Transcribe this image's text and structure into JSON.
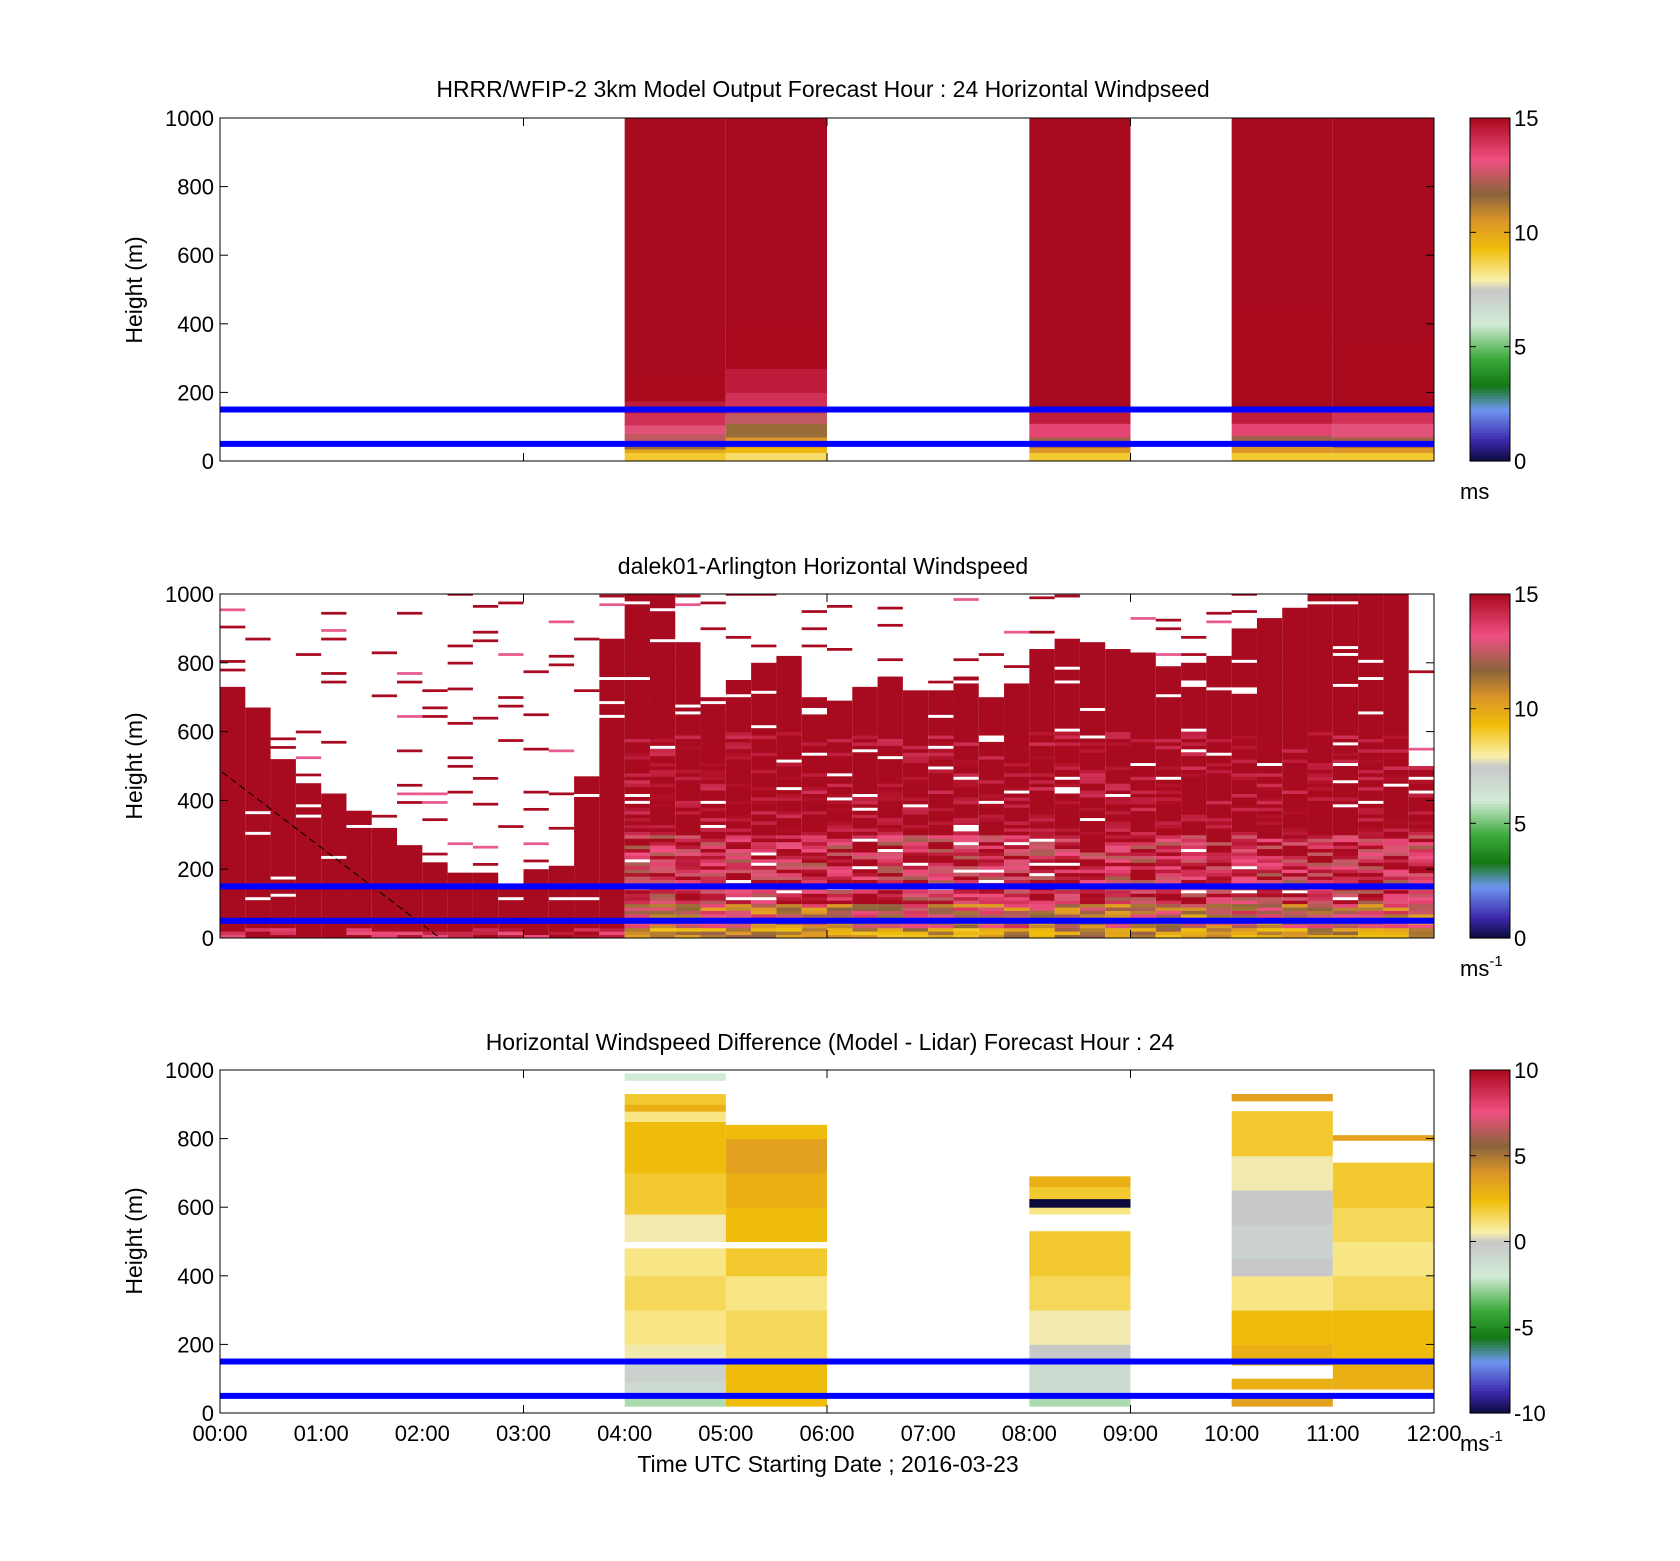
{
  "colors": {
    "reference_lines": "#0000ff",
    "axes": "#000000",
    "background": "#ffffff"
  },
  "xaxis": {
    "label": "Time UTC  Starting Date ; 2016-03-23",
    "ticks": [
      "00:00",
      "01:00",
      "02:00",
      "03:00",
      "04:00",
      "05:00",
      "06:00",
      "07:00",
      "08:00",
      "09:00",
      "10:00",
      "11:00",
      "12:00"
    ]
  },
  "chart_data": [
    {
      "type": "heatmap",
      "title": "HRRR/WFIP-2 3km Model Output   Forecast Hour : 24 Horizontal Windpseed",
      "ylabel": "Height (m)",
      "xlabel": "",
      "xlim_hours": [
        0,
        12
      ],
      "ylim": [
        0,
        1000
      ],
      "yticks": [
        "0",
        "200",
        "400",
        "600",
        "800",
        "1000"
      ],
      "colorbar": {
        "ticks": [
          "0",
          "5",
          "10",
          "15"
        ],
        "range": [
          0,
          15
        ],
        "unit": "ms",
        "unit_sup": ""
      },
      "reference_lines_m": [
        50,
        150
      ],
      "description_of_data": "model windspeed (m/s) per hourly column",
      "columns": [
        {
          "t0": 4,
          "t1": 5,
          "profile": [
            [
              0,
              25,
              9
            ],
            [
              25,
              35,
              10
            ],
            [
              35,
              55,
              11.5
            ],
            [
              55,
              80,
              12.5
            ],
            [
              80,
              105,
              13
            ],
            [
              105,
              140,
              14
            ],
            [
              140,
              175,
              14.5
            ],
            [
              175,
              250,
              15
            ],
            [
              250,
              1000,
              16
            ]
          ]
        },
        {
          "t0": 5,
          "t1": 6,
          "profile": [
            [
              0,
              25,
              8.5
            ],
            [
              25,
              40,
              9.5
            ],
            [
              40,
              70,
              10.5
            ],
            [
              70,
              110,
              11.5
            ],
            [
              110,
              140,
              12.5
            ],
            [
              140,
              200,
              14
            ],
            [
              200,
              270,
              14.5
            ],
            [
              270,
              340,
              15
            ],
            [
              340,
              400,
              15.5
            ],
            [
              400,
              1000,
              16
            ]
          ]
        },
        {
          "t0": 8,
          "t1": 9,
          "profile": [
            [
              0,
              25,
              9
            ],
            [
              25,
              40,
              10.5
            ],
            [
              40,
              70,
              12
            ],
            [
              70,
              110,
              13.5
            ],
            [
              110,
              150,
              14.5
            ],
            [
              150,
              1000,
              16
            ]
          ]
        },
        {
          "t0": 10,
          "t1": 11,
          "profile": [
            [
              0,
              25,
              9
            ],
            [
              25,
              45,
              10.5
            ],
            [
              45,
              75,
              12
            ],
            [
              75,
              110,
              13.5
            ],
            [
              110,
              150,
              14.5
            ],
            [
              150,
              450,
              15.5
            ],
            [
              450,
              1000,
              16
            ]
          ]
        },
        {
          "t0": 11,
          "t1": 12,
          "profile": [
            [
              0,
              25,
              9
            ],
            [
              25,
              40,
              10.5
            ],
            [
              40,
              70,
              12
            ],
            [
              70,
              110,
              13
            ],
            [
              110,
              150,
              14
            ],
            [
              150,
              350,
              15
            ],
            [
              350,
              1000,
              16
            ]
          ]
        }
      ]
    },
    {
      "type": "heatmap",
      "title": "dalek01-Arlington  Horizontal Windspeed",
      "ylabel": "Height (m)",
      "xlabel": "",
      "xlim_hours": [
        0,
        12
      ],
      "ylim": [
        0,
        1000
      ],
      "yticks": [
        "0",
        "200",
        "400",
        "600",
        "800",
        "1000"
      ],
      "colorbar": {
        "ticks": [
          "0",
          "5",
          "10",
          "15"
        ],
        "range": [
          0,
          15
        ],
        "unit": "ms",
        "unit_sup": "-1"
      },
      "reference_lines_m": [
        50,
        150
      ],
      "description_of_data": "lidar windspeed (m/s); columns of 0.25 h with top height of valid data",
      "col_width_h": 0.25,
      "tops_m": [
        730,
        670,
        530,
        450,
        420,
        370,
        330,
        270,
        220,
        200,
        190,
        150,
        200,
        220,
        470,
        870,
        1000,
        1000,
        870,
        700,
        750,
        800,
        820,
        700,
        690,
        730,
        760,
        720,
        720,
        760,
        700,
        740,
        840,
        870,
        860,
        840,
        830,
        800,
        800,
        820,
        900,
        930,
        960,
        1000,
        1000,
        1000,
        1000,
        500
      ]
    },
    {
      "type": "heatmap",
      "title": "Horizontal Windspeed Difference (Model - Lidar) Forecast Hour : 24",
      "ylabel": "Height (m)",
      "xlabel": "Time UTC  Starting Date ; 2016-03-23",
      "xlim_hours": [
        0,
        12
      ],
      "ylim": [
        0,
        1000
      ],
      "yticks": [
        "0",
        "200",
        "400",
        "600",
        "800",
        "1000"
      ],
      "colorbar": {
        "ticks": [
          "-10",
          "-5",
          "0",
          "5",
          "10"
        ],
        "range": [
          -10,
          10
        ],
        "unit": "ms",
        "unit_sup": "-1"
      },
      "reference_lines_m": [
        50,
        150
      ],
      "description_of_data": "difference (m/s) per hourly column; bands [bottom, top, value]",
      "columns": [
        {
          "t0": 4,
          "t1": 5,
          "profile": [
            [
              20,
              50,
              -2.5
            ],
            [
              50,
              90,
              -1
            ],
            [
              90,
              150,
              -0.5
            ],
            [
              150,
              200,
              0.5
            ],
            [
              200,
              300,
              1
            ],
            [
              300,
              400,
              1.5
            ],
            [
              400,
              480,
              1
            ],
            [
              480,
              500,
              null
            ],
            [
              500,
              580,
              0.5
            ],
            [
              580,
              700,
              2
            ],
            [
              700,
              850,
              2.5
            ],
            [
              850,
              880,
              1
            ],
            [
              880,
              900,
              3
            ],
            [
              900,
              930,
              2
            ],
            [
              970,
              990,
              -2
            ]
          ]
        },
        {
          "t0": 5,
          "t1": 6,
          "profile": [
            [
              20,
              150,
              2.5
            ],
            [
              150,
              300,
              1.5
            ],
            [
              300,
              400,
              1
            ],
            [
              400,
              480,
              2
            ],
            [
              480,
              500,
              null
            ],
            [
              500,
              600,
              2.5
            ],
            [
              600,
              700,
              3
            ],
            [
              700,
              800,
              3.5
            ],
            [
              800,
              840,
              2.5
            ]
          ]
        },
        {
          "t0": 8,
          "t1": 9,
          "profile": [
            [
              20,
              60,
              -2.5
            ],
            [
              60,
              150,
              -1
            ],
            [
              150,
              200,
              0
            ],
            [
              200,
              300,
              0.5
            ],
            [
              300,
              400,
              1.5
            ],
            [
              400,
              530,
              2
            ],
            [
              580,
              600,
              1
            ],
            [
              600,
              625,
              -10
            ],
            [
              625,
              660,
              2
            ],
            [
              660,
              690,
              3
            ]
          ]
        },
        {
          "t0": 10,
          "t1": 11,
          "profile": [
            [
              20,
              50,
              3.5
            ],
            [
              50,
              70,
              null
            ],
            [
              70,
              100,
              3
            ],
            [
              100,
              140,
              null
            ],
            [
              140,
              200,
              3
            ],
            [
              200,
              300,
              2.5
            ],
            [
              300,
              400,
              1
            ],
            [
              400,
              450,
              0
            ],
            [
              450,
              550,
              -0.5
            ],
            [
              550,
              650,
              0
            ],
            [
              650,
              750,
              0.5
            ],
            [
              750,
              880,
              2
            ],
            [
              910,
              930,
              3.5
            ]
          ]
        },
        {
          "t0": 11,
          "t1": 12,
          "profile": [
            [
              70,
              150,
              3
            ],
            [
              150,
              300,
              2.5
            ],
            [
              300,
              400,
              1.5
            ],
            [
              400,
              500,
              1
            ],
            [
              500,
              600,
              1.5
            ],
            [
              600,
              730,
              2
            ],
            [
              795,
              810,
              3.5
            ]
          ]
        }
      ]
    }
  ]
}
